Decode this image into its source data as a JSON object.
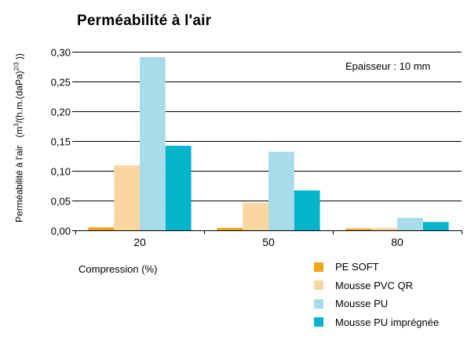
{
  "chart_data": {
    "type": "bar",
    "title": "Perméabilité à l'air",
    "ylabel": "Perméabilité à l'air (m3/(h.m.(daPa)2/3 ))",
    "ylabel_parts": {
      "main": "Perméabilité à l'air",
      "unit_open": "(m",
      "exp1": "3",
      "unit_mid": "/(h.m.(daPa)",
      "exp2": "2/3",
      "unit_close": " ))"
    },
    "xlabel": "Compression (%)",
    "annotation": "Epaisseur : 10 mm",
    "categories": [
      "20",
      "50",
      "80"
    ],
    "ylim": [
      0,
      0.3
    ],
    "yticks": [
      0,
      0.05,
      0.1,
      0.15,
      0.2,
      0.25,
      0.3
    ],
    "ytick_labels": [
      "0,00",
      "0,05",
      "0,10",
      "0,15",
      "0,20",
      "0,25",
      "0,30"
    ],
    "grid": true,
    "legend_position": "bottom-right",
    "series": [
      {
        "name": "PE SOFT",
        "color": "#f2a51c",
        "values": [
          0.005,
          0.004,
          0.003
        ]
      },
      {
        "name": "Mousse PVC QR",
        "color": "#fad7a0",
        "values": [
          0.109,
          0.046,
          0.004
        ]
      },
      {
        "name": "Mousse PU",
        "color": "#a8dcea",
        "values": [
          0.291,
          0.132,
          0.021
        ]
      },
      {
        "name": "Mousse PU imprégnée",
        "color": "#05b5cb",
        "values": [
          0.142,
          0.067,
          0.014
        ]
      }
    ]
  }
}
